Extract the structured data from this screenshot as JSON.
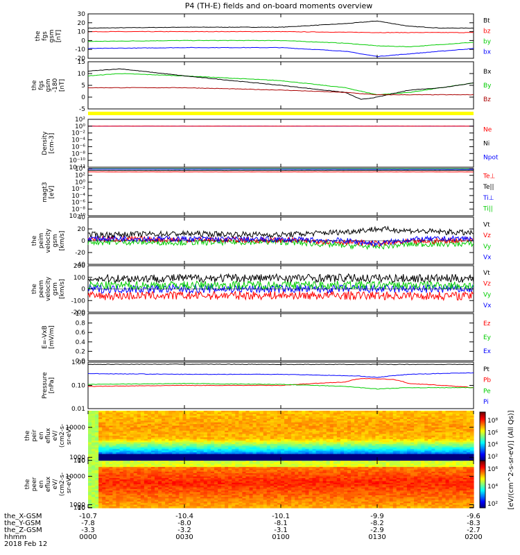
{
  "title": "P4 (TH-E) fields and on-board moments overview",
  "chart_data": {
    "type": "line",
    "panels": [
      {
        "ylabel": [
          "the",
          "fgs",
          "gsm",
          "[nT]"
        ],
        "ylim": [
          -20,
          30
        ],
        "yticks": [
          "30",
          "20",
          "10",
          "0",
          "-10",
          "-20"
        ],
        "ytick_values": [
          30,
          20,
          10,
          0,
          -10,
          -20
        ],
        "legend": [
          {
            "name": "Bt",
            "color": "#000000"
          },
          {
            "name": "bz",
            "color": "#ff0000"
          },
          {
            "name": "by",
            "color": "#00cc00"
          },
          {
            "name": "bx",
            "color": "#0000ff"
          }
        ],
        "series": [
          {
            "name": "Bt",
            "color": "#000000",
            "x": [
              0,
              30,
              60,
              80,
              90,
              100,
              110,
              120
            ],
            "y": [
              14,
              15,
              15,
              19,
              22,
              16,
              14,
              14
            ]
          },
          {
            "name": "bz",
            "color": "#ff0000",
            "x": [
              0,
              30,
              60,
              90,
              120
            ],
            "y": [
              10,
              10,
              10,
              9,
              9
            ]
          },
          {
            "name": "by",
            "color": "#00cc00",
            "x": [
              0,
              30,
              60,
              80,
              90,
              100,
              120
            ],
            "y": [
              -1,
              0,
              0,
              -3,
              -6,
              -7,
              -2
            ]
          },
          {
            "name": "bx",
            "color": "#0000ff",
            "x": [
              0,
              30,
              60,
              80,
              90,
              100,
              120
            ],
            "y": [
              -9,
              -8,
              -8,
              -12,
              -18,
              -15,
              -9
            ]
          }
        ]
      },
      {
        "ylabel": [
          "the",
          "fgs",
          "gsm",
          "-180",
          "[nT]"
        ],
        "ylim": [
          -5,
          15
        ],
        "yticks": [
          "15",
          "10",
          "5",
          "0",
          "-5"
        ],
        "ytick_values": [
          15,
          10,
          5,
          0,
          -5
        ],
        "legend": [
          {
            "name": "Bx",
            "color": "#000000"
          },
          {
            "name": "By",
            "color": "#00cc00"
          },
          {
            "name": "Bz",
            "color": "#aa0000"
          }
        ],
        "series": [
          {
            "name": "By",
            "color": "#00cc00",
            "x": [
              0,
              10,
              30,
              60,
              80,
              90,
              100,
              110,
              120
            ],
            "y": [
              9,
              10,
              9,
              7,
              4,
              1,
              2,
              4,
              6
            ]
          },
          {
            "name": "Bx",
            "color": "#000000",
            "x": [
              0,
              10,
              30,
              60,
              80,
              85,
              90,
              100,
              110,
              120
            ],
            "y": [
              11,
              12,
              9,
              5,
              2,
              -1,
              0,
              3,
              4,
              6
            ]
          },
          {
            "name": "Bz",
            "color": "#aa0000",
            "x": [
              0,
              10,
              30,
              60,
              80,
              90,
              100,
              120
            ],
            "y": [
              4,
              4,
              4,
              3,
              2,
              1,
              1,
              1
            ]
          }
        ]
      },
      {
        "type": "state-bar",
        "color": "#ffff00"
      },
      {
        "ylabel": [
          "Density",
          "[cm-3]"
        ],
        "scale": "log",
        "ylim": [
          1e-12,
          100
        ],
        "yticks": [
          "10²",
          "10⁰",
          "10⁻²",
          "10⁻⁴",
          "10⁻⁶",
          "10⁻⁸",
          "10⁻¹⁰",
          "10⁻¹²"
        ],
        "ytick_values": [
          100,
          1,
          0.01,
          0.0001,
          1e-06,
          1e-08,
          1e-10,
          1e-12
        ],
        "legend": [
          {
            "name": "Ne",
            "color": "#ff0000"
          },
          {
            "name": "Ni",
            "color": "#000000"
          },
          {
            "name": "Npot",
            "color": "#0000ff"
          }
        ],
        "series": [
          {
            "name": "Npot",
            "color": "#0000ff",
            "x": [
              0,
              120
            ],
            "y": [
              1,
              1
            ]
          },
          {
            "name": "Ne",
            "color": "#ff0000",
            "x": [
              0,
              120
            ],
            "y": [
              1,
              1
            ]
          }
        ]
      },
      {
        "ylabel": [
          "magt3",
          "[eV]"
        ],
        "scale": "log",
        "ylim": [
          1e-10,
          10000
        ],
        "yticks": [
          "10⁴",
          "10²",
          "10⁰",
          "10⁻²",
          "10⁻⁴",
          "10⁻⁶",
          "10⁻⁸",
          "10⁻¹⁰"
        ],
        "ytick_values": [
          10000,
          100,
          1,
          0.01,
          0.0001,
          1e-06,
          1e-08,
          1e-10
        ],
        "legend": [
          {
            "name": "Te⊥",
            "color": "#ff0000"
          },
          {
            "name": "Te||",
            "color": "#000000"
          },
          {
            "name": "Ti⊥",
            "color": "#0000ff"
          },
          {
            "name": "Ti||",
            "color": "#00cc00"
          }
        ],
        "series": [
          {
            "name": "Ti||",
            "color": "#00cc00",
            "x": [
              0,
              120
            ],
            "y": [
              9000,
              9000
            ]
          },
          {
            "name": "Te||",
            "color": "#000000",
            "x": [
              0,
              120
            ],
            "y": [
              3000,
              3000
            ]
          },
          {
            "name": "Te⊥",
            "color": "#ff0000",
            "x": [
              0,
              120
            ],
            "y": [
              1000,
              1000
            ]
          },
          {
            "name": "Ti⊥",
            "color": "#0000ff",
            "x": [
              0,
              120
            ],
            "y": [
              7000,
              6000
            ]
          }
        ]
      },
      {
        "ylabel": [
          "the",
          "peim",
          "velocity",
          "gsm",
          "[km/s]"
        ],
        "ylim": [
          -40,
          40
        ],
        "yticks": [
          "40",
          "20",
          "0",
          "-20",
          "-40"
        ],
        "ytick_values": [
          40,
          20,
          0,
          -20,
          -40
        ],
        "legend": [
          {
            "name": "Vt",
            "color": "#000000"
          },
          {
            "name": "Vz",
            "color": "#ff0000"
          },
          {
            "name": "Vy",
            "color": "#00cc00"
          },
          {
            "name": "Vx",
            "color": "#0000ff"
          }
        ],
        "series": [
          {
            "name": "Vy",
            "color": "#00cc00",
            "x": [
              0,
              30,
              60,
              80,
              90,
              100,
              120
            ],
            "y": [
              -2,
              -3,
              -2,
              -8,
              -10,
              -6,
              -5
            ]
          },
          {
            "name": "Vz",
            "color": "#ff0000",
            "x": [
              0,
              30,
              60,
              80,
              90,
              100,
              120
            ],
            "y": [
              3,
              2,
              1,
              -2,
              -5,
              -2,
              2
            ]
          },
          {
            "name": "Vx",
            "color": "#0000ff",
            "x": [
              0,
              30,
              60,
              80,
              90,
              100,
              120
            ],
            "y": [
              4,
              3,
              2,
              0,
              -5,
              2,
              4
            ]
          },
          {
            "name": "Vt",
            "color": "#000000",
            "x": [
              0,
              30,
              60,
              80,
              90,
              100,
              120
            ],
            "y": [
              10,
              12,
              10,
              15,
              20,
              17,
              13
            ]
          }
        ]
      },
      {
        "ylabel": [
          "the",
          "peem",
          "velocity",
          "gsm",
          "[km/s]"
        ],
        "ylim": [
          -200,
          200
        ],
        "yticks": [
          "200",
          "100",
          "0",
          "-100",
          "-200"
        ],
        "ytick_values": [
          200,
          100,
          0,
          -100,
          -200
        ],
        "legend": [
          {
            "name": "Vt",
            "color": "#000000"
          },
          {
            "name": "Vz",
            "color": "#ff0000"
          },
          {
            "name": "Vy",
            "color": "#00cc00"
          },
          {
            "name": "Vx",
            "color": "#0000ff"
          }
        ],
        "series": [
          {
            "name": "Vx",
            "color": "#0000ff",
            "x": [
              0,
              60,
              120
            ],
            "y": [
              0,
              0,
              0
            ]
          },
          {
            "name": "Vy",
            "color": "#00cc00",
            "x": [
              0,
              60,
              120
            ],
            "y": [
              30,
              35,
              30
            ]
          },
          {
            "name": "Vz",
            "color": "#ff0000",
            "x": [
              0,
              60,
              120
            ],
            "y": [
              -60,
              -55,
              -60
            ]
          },
          {
            "name": "Vt",
            "color": "#000000",
            "x": [
              0,
              60,
              120
            ],
            "y": [
              90,
              95,
              90
            ]
          }
        ]
      },
      {
        "ylabel": [
          "E=-VxB",
          "[mV/m]"
        ],
        "ylim": [
          0,
          1
        ],
        "yticks": [
          "1.0",
          "0.8",
          "0.6",
          "0.4",
          "0.2",
          "0.0"
        ],
        "ytick_values": [
          1,
          0.8,
          0.6,
          0.4,
          0.2,
          0
        ],
        "legend": [
          {
            "name": "Ez",
            "color": "#ff0000"
          },
          {
            "name": "Ey",
            "color": "#00cc00"
          },
          {
            "name": "Ex",
            "color": "#0000ff"
          }
        ],
        "series": []
      },
      {
        "ylabel": [
          "Pressure",
          "[nPa]"
        ],
        "scale": "log",
        "ylim": [
          0.01,
          1.0
        ],
        "yticks": [
          "1.00",
          "0.10",
          "0.01"
        ],
        "ytick_values": [
          1.0,
          0.1,
          0.01
        ],
        "legend": [
          {
            "name": "Pt",
            "color": "#000000"
          },
          {
            "name": "Pb",
            "color": "#ff0000"
          },
          {
            "name": "Pe",
            "color": "#00cc00"
          },
          {
            "name": "Pi",
            "color": "#0000ff"
          }
        ],
        "series": [
          {
            "name": "Pt",
            "color": "#000000",
            "x": [
              0,
              30,
              60,
              90,
              120
            ],
            "y": [
              0.8,
              0.82,
              0.8,
              0.8,
              0.8
            ]
          },
          {
            "name": "Pi",
            "color": "#0000ff",
            "x": [
              0,
              30,
              60,
              85,
              90,
              100,
              120
            ],
            "y": [
              0.32,
              0.3,
              0.3,
              0.25,
              0.22,
              0.3,
              0.35
            ]
          },
          {
            "name": "Pb",
            "color": "#ff0000",
            "x": [
              0,
              30,
              60,
              80,
              85,
              95,
              100,
              120
            ],
            "y": [
              0.09,
              0.1,
              0.1,
              0.14,
              0.2,
              0.18,
              0.12,
              0.08
            ]
          },
          {
            "name": "Pe",
            "color": "#00cc00",
            "x": [
              0,
              30,
              60,
              80,
              90,
              100,
              120
            ],
            "y": [
              0.11,
              0.12,
              0.11,
              0.09,
              0.07,
              0.08,
              0.08
            ]
          }
        ]
      },
      {
        "type": "heatmap",
        "ylabel": [
          "the",
          "peir",
          "en",
          "eflux",
          "eV/",
          "(cm2-s-",
          "sr-eV)"
        ],
        "ylim": [
          8,
          15000
        ],
        "yticks": [
          "10000",
          "1000",
          "100",
          "10"
        ],
        "ytick_values": [
          10000,
          1000,
          100,
          10
        ]
      },
      {
        "type": "heatmap",
        "ylabel": [
          "the",
          "peer",
          "en",
          "eflux",
          "eV/",
          "(cm2-s-",
          "sr-eV)"
        ],
        "ylim": [
          8,
          15000
        ],
        "yticks": [
          "10000",
          "1000",
          "100",
          "10"
        ],
        "ytick_values": [
          10000,
          1000,
          100,
          10
        ]
      }
    ],
    "colorbars": [
      {
        "ticks": [
          "10⁸",
          "10⁶",
          "10⁴",
          "10²"
        ]
      },
      {
        "ticks": [
          "10⁶",
          "10⁴",
          "10²"
        ]
      }
    ],
    "colorbar_label": "[eV/(cm^2-s-sr-eV)] (All Qs)]",
    "xaxis": {
      "ticks_minutes": [
        0,
        30,
        60,
        90,
        120
      ],
      "rows": [
        {
          "label": "the_X-GSM",
          "values": [
            "-10.7",
            "-10.4",
            "-10.1",
            "-9.9",
            "-9.6"
          ]
        },
        {
          "label": "the_Y-GSM",
          "values": [
            "-7.8",
            "-8.0",
            "-8.1",
            "-8.2",
            "-8.3"
          ]
        },
        {
          "label": "the_Z-GSM",
          "values": [
            "-3.3",
            "-3.2",
            "-3.1",
            "-2.9",
            "-2.7"
          ]
        },
        {
          "label": "hhmm",
          "values": [
            "0000",
            "0030",
            "0100",
            "0130",
            "0200"
          ]
        }
      ],
      "date": "2018 Feb 12"
    }
  }
}
